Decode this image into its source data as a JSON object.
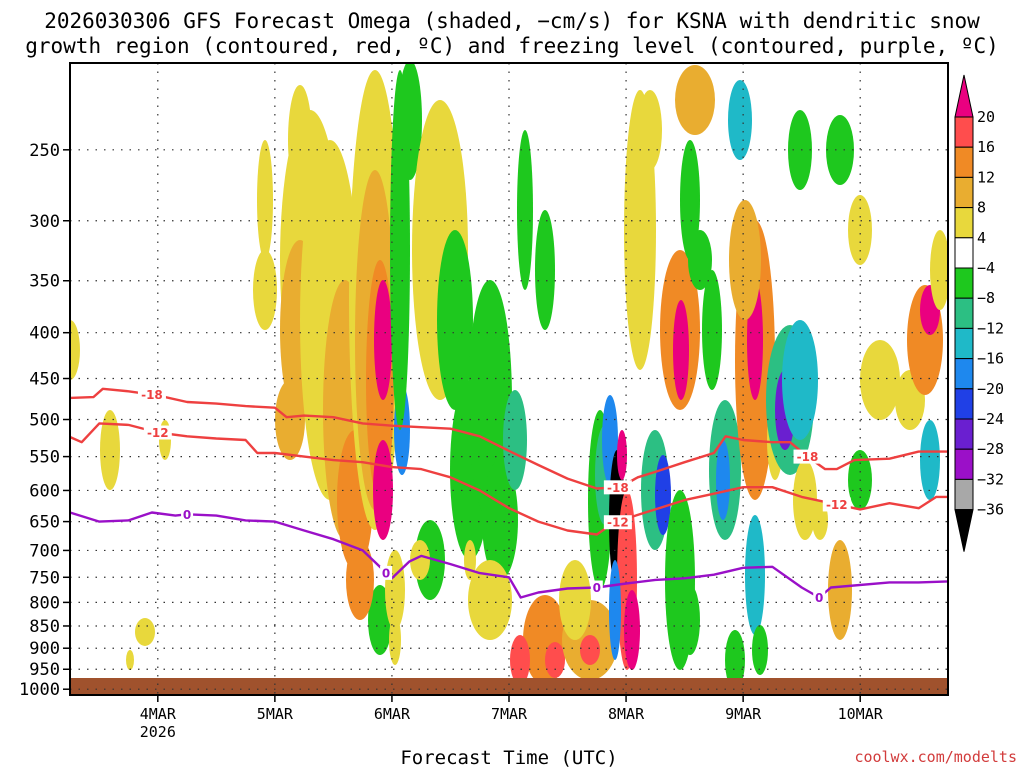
{
  "chart_data": {
    "type": "heatmap",
    "title_line1": "2026030306 GFS Forecast Omega (shaded, −cm/s) for KSNA with dendritic snow",
    "title_line2": "growth region (contoured, red, ºC) and freezing level (contoured, purple, ºC)",
    "xlabel": "Forecast Time (UTC)",
    "credit": "coolwx.com/modelts",
    "x_range": [
      0,
      7.5
    ],
    "y_range": [
      200,
      1015
    ],
    "x_ticks": [
      {
        "t": 0.75,
        "label": "4MAR",
        "sub": "2026"
      },
      {
        "t": 1.75,
        "label": "5MAR",
        "sub": ""
      },
      {
        "t": 2.75,
        "label": "6MAR",
        "sub": ""
      },
      {
        "t": 3.75,
        "label": "7MAR",
        "sub": ""
      },
      {
        "t": 4.75,
        "label": "8MAR",
        "sub": ""
      },
      {
        "t": 5.75,
        "label": "9MAR",
        "sub": ""
      },
      {
        "t": 6.75,
        "label": "10MAR",
        "sub": ""
      }
    ],
    "y_ticks": [
      250,
      300,
      350,
      400,
      450,
      500,
      550,
      600,
      650,
      700,
      750,
      800,
      850,
      900,
      950,
      1000
    ],
    "colorbar": {
      "labels": [
        "20",
        "16",
        "12",
        "8",
        "4",
        "−4",
        "−8",
        "−12",
        "−16",
        "−20",
        "−24",
        "−28",
        "−32",
        "−36"
      ],
      "colors": [
        "#ea0080",
        "#ff4d4d",
        "#f08a25",
        "#e9ad30",
        "#e8d83c",
        "#ffffff",
        "#1ec81e",
        "#2cbf83",
        "#1fb9c8",
        "#1e88ee",
        "#2040e6",
        "#6a1fd0",
        "#9b10c8",
        "#a8a8a8",
        "#000000"
      ]
    },
    "series": [
      {
        "name": "-18",
        "color": "#ee4040",
        "label_text": "-18",
        "label_at": [
          0.7,
          4.68,
          6.3
        ],
        "points": [
          [
            0,
            473
          ],
          [
            0.2,
            472
          ],
          [
            0.28,
            462
          ],
          [
            0.5,
            465
          ],
          [
            0.75,
            470
          ],
          [
            1.0,
            478
          ],
          [
            1.25,
            480
          ],
          [
            1.5,
            483
          ],
          [
            1.75,
            485
          ],
          [
            1.85,
            497
          ],
          [
            2.0,
            495
          ],
          [
            2.25,
            497
          ],
          [
            2.5,
            505
          ],
          [
            2.75,
            508
          ],
          [
            3.0,
            510
          ],
          [
            3.25,
            512
          ],
          [
            3.5,
            522
          ],
          [
            3.75,
            542
          ],
          [
            4.0,
            562
          ],
          [
            4.25,
            582
          ],
          [
            4.5,
            597
          ],
          [
            4.7,
            595
          ],
          [
            4.85,
            580
          ],
          [
            5.0,
            572
          ],
          [
            5.25,
            558
          ],
          [
            5.5,
            545
          ],
          [
            5.6,
            522
          ],
          [
            5.75,
            527
          ],
          [
            6.0,
            530
          ],
          [
            6.15,
            530
          ],
          [
            6.3,
            550
          ],
          [
            6.45,
            568
          ],
          [
            6.55,
            568
          ],
          [
            6.7,
            555
          ],
          [
            7.0,
            553
          ],
          [
            7.25,
            543
          ],
          [
            7.5,
            543
          ]
        ]
      },
      {
        "name": "-12",
        "color": "#ee4040",
        "label_text": "-12",
        "label_at": [
          0.75,
          4.68,
          6.55
        ],
        "points": [
          [
            0,
            523
          ],
          [
            0.1,
            530
          ],
          [
            0.25,
            505
          ],
          [
            0.5,
            507
          ],
          [
            0.75,
            517
          ],
          [
            1.0,
            522
          ],
          [
            1.25,
            525
          ],
          [
            1.5,
            527
          ],
          [
            1.6,
            545
          ],
          [
            1.75,
            545
          ],
          [
            2.0,
            550
          ],
          [
            2.25,
            555
          ],
          [
            2.5,
            558
          ],
          [
            2.75,
            565
          ],
          [
            3.0,
            568
          ],
          [
            3.25,
            580
          ],
          [
            3.5,
            600
          ],
          [
            3.75,
            628
          ],
          [
            4.0,
            650
          ],
          [
            4.25,
            665
          ],
          [
            4.5,
            672
          ],
          [
            4.6,
            658
          ],
          [
            4.75,
            645
          ],
          [
            5.0,
            630
          ],
          [
            5.25,
            615
          ],
          [
            5.5,
            605
          ],
          [
            5.75,
            595
          ],
          [
            6.0,
            595
          ],
          [
            6.25,
            610
          ],
          [
            6.5,
            620
          ],
          [
            6.75,
            630
          ],
          [
            7.0,
            620
          ],
          [
            7.25,
            628
          ],
          [
            7.4,
            610
          ],
          [
            7.5,
            610
          ]
        ]
      },
      {
        "name": "0",
        "color": "#9a10c8",
        "label_text": "0",
        "label_at": [
          1.0,
          2.7,
          4.5,
          6.4
        ],
        "points": [
          [
            0,
            635
          ],
          [
            0.25,
            650
          ],
          [
            0.5,
            648
          ],
          [
            0.7,
            635
          ],
          [
            0.9,
            640
          ],
          [
            1.0,
            638
          ],
          [
            1.25,
            640
          ],
          [
            1.5,
            648
          ],
          [
            1.75,
            650
          ],
          [
            2.0,
            665
          ],
          [
            2.25,
            680
          ],
          [
            2.5,
            700
          ],
          [
            2.75,
            752
          ],
          [
            2.9,
            720
          ],
          [
            3.0,
            710
          ],
          [
            3.25,
            725
          ],
          [
            3.5,
            742
          ],
          [
            3.75,
            750
          ],
          [
            3.85,
            790
          ],
          [
            4.0,
            780
          ],
          [
            4.25,
            772
          ],
          [
            4.5,
            770
          ],
          [
            4.75,
            762
          ],
          [
            5.0,
            755
          ],
          [
            5.25,
            752
          ],
          [
            5.5,
            745
          ],
          [
            5.75,
            732
          ],
          [
            6.0,
            730
          ],
          [
            6.25,
            770
          ],
          [
            6.4,
            790
          ],
          [
            6.5,
            770
          ],
          [
            7.0,
            760
          ],
          [
            7.25,
            760
          ],
          [
            7.5,
            758
          ]
        ]
      }
    ]
  }
}
